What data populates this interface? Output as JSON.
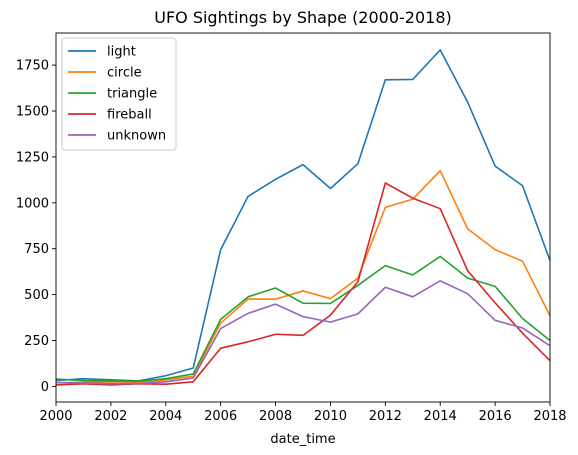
{
  "chart_data": {
    "type": "line",
    "title": "UFO Sightings by Shape (2000-2018)",
    "xlabel": "date_time",
    "ylabel": "",
    "xlim": [
      2000,
      2018
    ],
    "ylim": [
      -85,
      1925
    ],
    "grid": false,
    "legend_position": "top-left",
    "x_ticks": [
      "2000",
      "2002",
      "2004",
      "2006",
      "2008",
      "2010",
      "2012",
      "2014",
      "2016",
      "2018"
    ],
    "y_ticks": [
      "0",
      "250",
      "500",
      "750",
      "1000",
      "1250",
      "1500",
      "1750"
    ],
    "x": [
      2000,
      2001,
      2002,
      2003,
      2004,
      2005,
      2006,
      2007,
      2008,
      2009,
      2010,
      2011,
      2012,
      2013,
      2014,
      2015,
      2016,
      2017,
      2018
    ],
    "series": [
      {
        "name": "light",
        "color": "#1f77b4",
        "values": [
          32,
          42,
          36,
          30,
          58,
          100,
          745,
          1035,
          1128,
          1208,
          1078,
          1213,
          1670,
          1672,
          1833,
          1548,
          1200,
          1093,
          685
        ]
      },
      {
        "name": "circle",
        "color": "#ff7f0e",
        "values": [
          20,
          22,
          25,
          22,
          35,
          55,
          345,
          476,
          475,
          520,
          478,
          590,
          975,
          1020,
          1175,
          858,
          745,
          682,
          385
        ]
      },
      {
        "name": "triangle",
        "color": "#2ca02c",
        "values": [
          40,
          32,
          30,
          28,
          42,
          68,
          365,
          488,
          536,
          453,
          452,
          550,
          658,
          607,
          708,
          590,
          545,
          370,
          250
        ]
      },
      {
        "name": "fireball",
        "color": "#d62728",
        "values": [
          8,
          14,
          8,
          14,
          12,
          25,
          208,
          243,
          284,
          278,
          388,
          570,
          1108,
          1025,
          968,
          630,
          455,
          290,
          140
        ]
      },
      {
        "name": "unknown",
        "color": "#9467bd",
        "values": [
          20,
          18,
          15,
          15,
          25,
          45,
          315,
          398,
          448,
          380,
          350,
          395,
          540,
          488,
          575,
          505,
          360,
          318,
          222
        ]
      }
    ]
  }
}
